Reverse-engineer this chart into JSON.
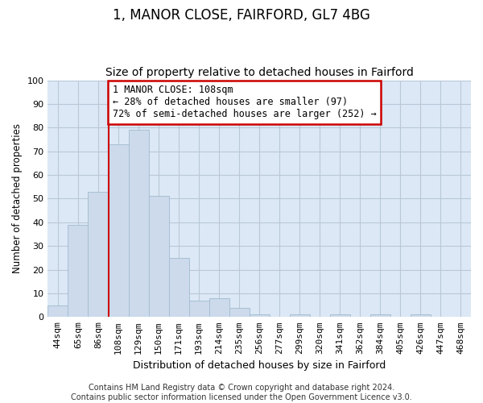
{
  "title": "1, MANOR CLOSE, FAIRFORD, GL7 4BG",
  "subtitle": "Size of property relative to detached houses in Fairford",
  "xlabel": "Distribution of detached houses by size in Fairford",
  "ylabel": "Number of detached properties",
  "categories": [
    "44sqm",
    "65sqm",
    "86sqm",
    "108sqm",
    "129sqm",
    "150sqm",
    "171sqm",
    "193sqm",
    "214sqm",
    "235sqm",
    "256sqm",
    "277sqm",
    "299sqm",
    "320sqm",
    "341sqm",
    "362sqm",
    "384sqm",
    "405sqm",
    "426sqm",
    "447sqm",
    "468sqm"
  ],
  "values": [
    5,
    39,
    53,
    73,
    79,
    51,
    25,
    7,
    8,
    4,
    1,
    0,
    1,
    0,
    1,
    0,
    1,
    0,
    1,
    0,
    0
  ],
  "bar_color": "#ccdaeb",
  "bar_edge_color": "#a8bfd4",
  "red_line_index": 3,
  "red_line_color": "#cc0000",
  "annotation_text": "1 MANOR CLOSE: 108sqm\n← 28% of detached houses are smaller (97)\n72% of semi-detached houses are larger (252) →",
  "annotation_box_color": "#ffffff",
  "annotation_box_edge_color": "#cc0000",
  "ylim": [
    0,
    100
  ],
  "yticks": [
    0,
    10,
    20,
    30,
    40,
    50,
    60,
    70,
    80,
    90,
    100
  ],
  "grid_color": "#b8c8d8",
  "background_color": "#dce8f5",
  "footer_text": "Contains HM Land Registry data © Crown copyright and database right 2024.\nContains public sector information licensed under the Open Government Licence v3.0.",
  "title_fontsize": 12,
  "subtitle_fontsize": 10,
  "xlabel_fontsize": 9,
  "ylabel_fontsize": 8.5,
  "tick_fontsize": 8,
  "annotation_fontsize": 8.5,
  "footer_fontsize": 7
}
